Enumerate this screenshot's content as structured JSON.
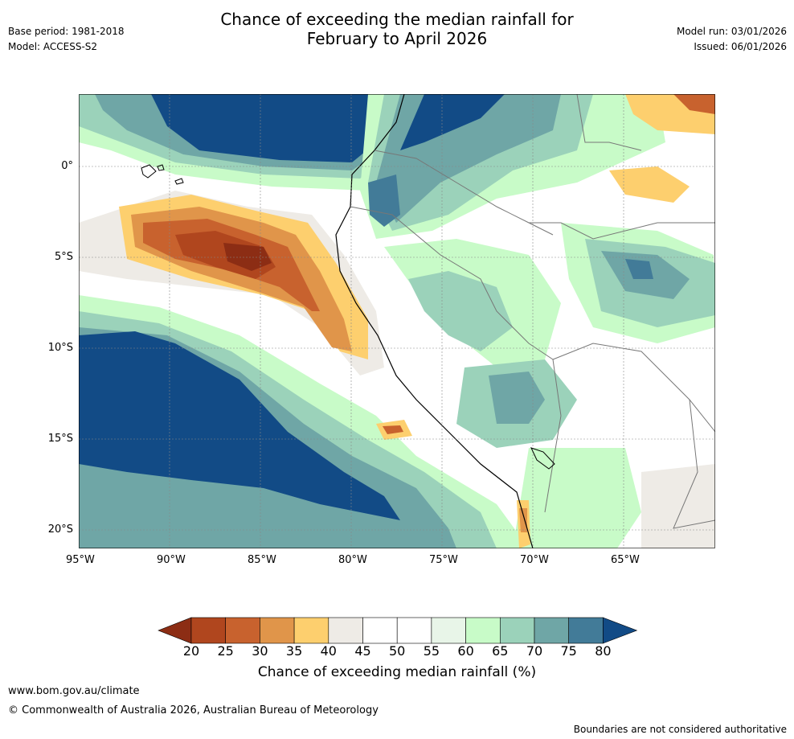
{
  "header": {
    "base_period": "Base period: 1981-2018",
    "model": "Model: ACCESS-S2",
    "title_line1": "Chance of exceeding the median rainfall for",
    "title_line2": "February to April 2026",
    "model_run": "Model run: 03/01/2026",
    "issued": "Issued: 06/01/2026"
  },
  "map": {
    "lat_labels": [
      "0°",
      "5°S",
      "10°S",
      "15°S",
      "20°S"
    ],
    "lon_labels": [
      "95°W",
      "90°W",
      "85°W",
      "80°W",
      "75°W",
      "70°W",
      "65°W"
    ]
  },
  "colorbar": {
    "ticks": [
      "20",
      "25",
      "30",
      "35",
      "40",
      "45",
      "50",
      "55",
      "60",
      "65",
      "70",
      "75",
      "80"
    ],
    "colors": [
      "#8c2d14",
      "#b0461e",
      "#c8622e",
      "#e0954a",
      "#fdcf6e",
      "#eeebe6",
      "#ffffff",
      "#ffffff",
      "#e8f5e8",
      "#c8fbc8",
      "#9bd2ba",
      "#6fa6a6",
      "#427b98",
      "#124b86"
    ],
    "label": "Chance of exceeding median rainfall (%)"
  },
  "footer": {
    "url": "www.bom.gov.au/climate",
    "copyright": "© Commonwealth of Australia 2026, Australian Bureau of Meteorology",
    "disclaimer": "Boundaries are not considered authoritative"
  }
}
